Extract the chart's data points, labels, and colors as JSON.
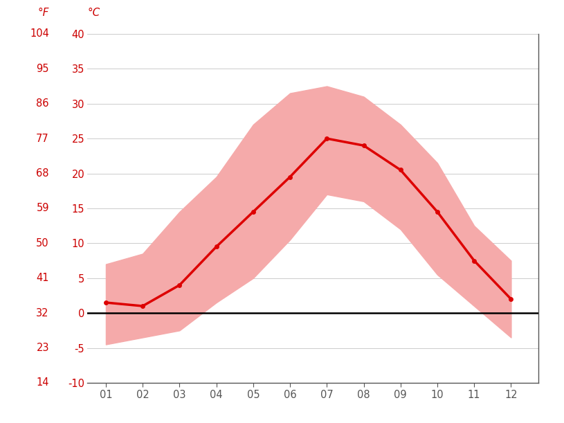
{
  "months": [
    1,
    2,
    3,
    4,
    5,
    6,
    7,
    8,
    9,
    10,
    11,
    12
  ],
  "month_labels": [
    "01",
    "02",
    "03",
    "04",
    "05",
    "06",
    "07",
    "08",
    "09",
    "10",
    "11",
    "12"
  ],
  "mean_temp_c": [
    1.5,
    1.0,
    4.0,
    9.5,
    14.5,
    19.5,
    25.0,
    24.0,
    20.5,
    14.5,
    7.5,
    2.0
  ],
  "max_temp_c": [
    7.0,
    8.5,
    14.5,
    19.5,
    27.0,
    31.5,
    32.5,
    31.0,
    27.0,
    21.5,
    12.5,
    7.5
  ],
  "min_temp_c": [
    -4.5,
    -3.5,
    -2.5,
    1.5,
    5.0,
    10.5,
    17.0,
    16.0,
    12.0,
    5.5,
    1.0,
    -3.5
  ],
  "ylim_c": [
    -10,
    40
  ],
  "yticks_c": [
    -10,
    -5,
    0,
    5,
    10,
    15,
    20,
    25,
    30,
    35,
    40
  ],
  "yticks_f": [
    14,
    23,
    32,
    41,
    50,
    59,
    68,
    77,
    86,
    95,
    104
  ],
  "mean_color": "#dd0000",
  "band_color": "#f5aaaa",
  "zero_line_color": "#000000",
  "grid_color": "#cccccc",
  "axis_label_color": "#cc0000",
  "tick_label_color": "#555555",
  "background_color": "#ffffff",
  "figsize": [
    8.15,
    6.11
  ],
  "dpi": 100
}
